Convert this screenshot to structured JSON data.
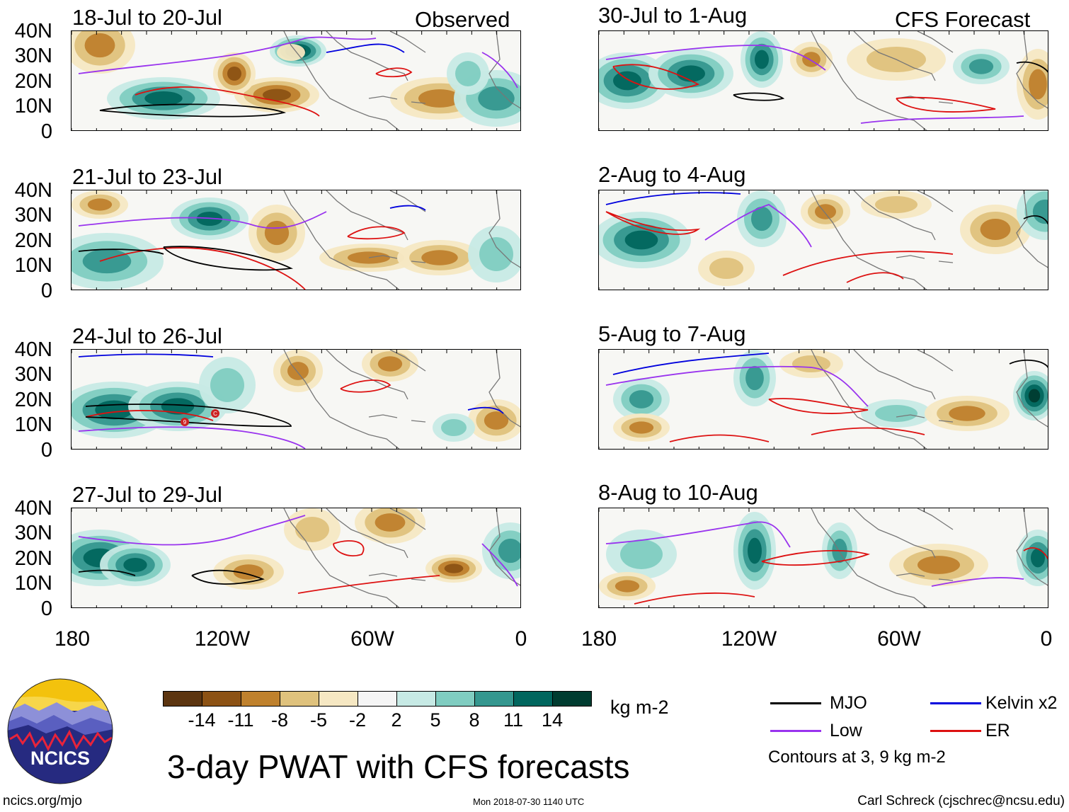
{
  "panels": {
    "left_header": "Observed",
    "right_header": "CFS Forecast",
    "left": [
      {
        "period": "18-Jul to 20-Jul"
      },
      {
        "period": "21-Jul to 23-Jul"
      },
      {
        "period": "24-Jul to 26-Jul"
      },
      {
        "period": "27-Jul to 29-Jul"
      }
    ],
    "right": [
      {
        "period": "30-Jul to 1-Aug"
      },
      {
        "period": "2-Aug to 4-Aug"
      },
      {
        "period": "5-Aug to 7-Aug"
      },
      {
        "period": "8-Aug to 10-Aug"
      }
    ],
    "storm_markers": [
      "9",
      "C"
    ]
  },
  "axes": {
    "lat_labels": [
      "40N",
      "30N",
      "20N",
      "10N",
      "0"
    ],
    "lon_labels": [
      "180",
      "120W",
      "60W",
      "0"
    ]
  },
  "colorbar": {
    "colors": [
      "#5c3510",
      "#8c5214",
      "#bf812d",
      "#dfc27d",
      "#f6e8c3",
      "#f5f5f5",
      "#c7eae5",
      "#80cdc1",
      "#35978f",
      "#01665e",
      "#003c30"
    ],
    "ticks": [
      "-14",
      "-11",
      "-8",
      "-5",
      "-2",
      "2",
      "5",
      "8",
      "11",
      "14"
    ],
    "units": "kg m-2"
  },
  "title": "3-day PWAT with CFS forecasts",
  "legend": {
    "items": [
      {
        "label": "MJO",
        "color": "#000000"
      },
      {
        "label": "Kelvin x2",
        "color": "#0000dd"
      },
      {
        "label": "Low",
        "color": "#9933ee"
      },
      {
        "label": "ER",
        "color": "#dd1111"
      }
    ],
    "note": "Contours at 3, 9 kg m-2"
  },
  "logo": {
    "text": "NCICS"
  },
  "footer": {
    "left": "ncics.org/mjo",
    "middle": "Mon 2018-07-30 1140 UTC",
    "right": "Carl Schreck (cjschrec@ncsu.edu)"
  }
}
